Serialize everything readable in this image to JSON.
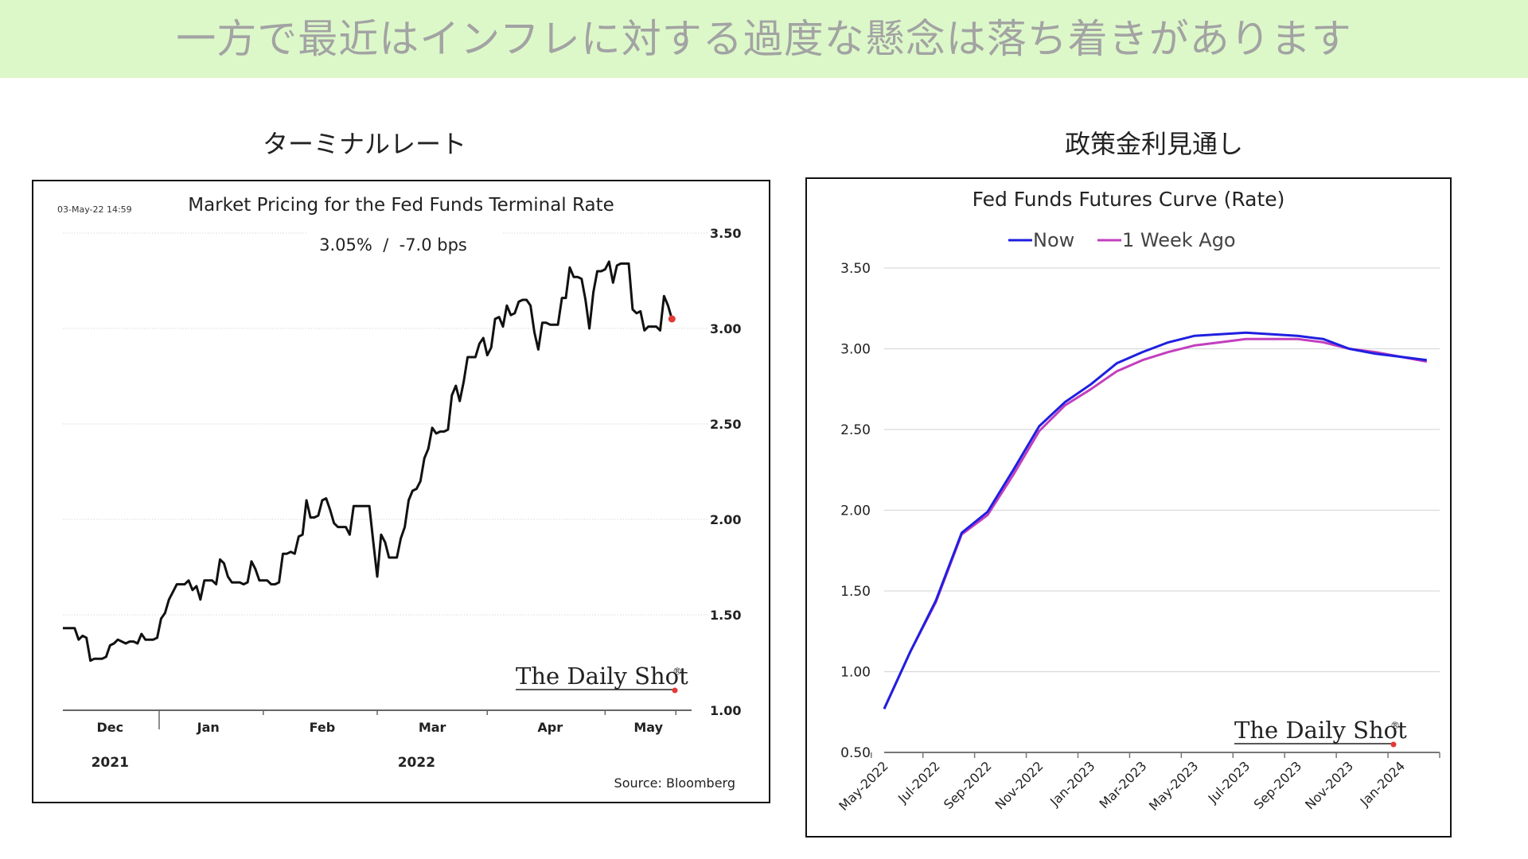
{
  "page": {
    "title": "一方で最近はインフレに対する過度な懸念は落ち着きがあります",
    "left_label": "ターミナルレート",
    "right_label": "政策金利見通し"
  },
  "colors": {
    "banner_bg": "#dcf8c9",
    "banner_text": "#a3a3a3",
    "line_black": "#111111",
    "last_point": "#e53935",
    "now": "#1f1fe0",
    "week_ago": "#c23fbf",
    "grid": "#d9d9d9"
  },
  "chart_data": [
    {
      "type": "line",
      "title": "Market Pricing for the Fed Funds Terminal Rate",
      "timestamp": "03-May-22 14:59",
      "subtitle": "3.05%  /  -7.0 bps",
      "source": "Source: Bloomberg",
      "watermark": "The Daily Shot",
      "watermark_mark": "®",
      "month_labels": [
        "Dec",
        "Jan",
        "Feb",
        "Mar",
        "Apr",
        "May"
      ],
      "year_labels": [
        "2021",
        "2022"
      ],
      "y_ticks": [
        "1.00",
        "1.50",
        "2.00",
        "2.50",
        "3.00",
        "3.50"
      ],
      "ylim": [
        1.0,
        3.5
      ],
      "grid": true,
      "x_range": [
        0,
        160
      ],
      "series": [
        {
          "values": [
            [
              0,
              1.43
            ],
            [
              2,
              1.43
            ],
            [
              3,
              1.43
            ],
            [
              4,
              1.37
            ],
            [
              5,
              1.39
            ],
            [
              6,
              1.38
            ],
            [
              7,
              1.26
            ],
            [
              8,
              1.27
            ],
            [
              9,
              1.27
            ],
            [
              10,
              1.27
            ],
            [
              11,
              1.28
            ],
            [
              12,
              1.34
            ],
            [
              13,
              1.35
            ],
            [
              14,
              1.37
            ],
            [
              15,
              1.36
            ],
            [
              16,
              1.35
            ],
            [
              17,
              1.36
            ],
            [
              18,
              1.36
            ],
            [
              19,
              1.35
            ],
            [
              20,
              1.4
            ],
            [
              21,
              1.37
            ],
            [
              22,
              1.37
            ],
            [
              23,
              1.37
            ],
            [
              24,
              1.38
            ],
            [
              25,
              1.48
            ],
            [
              26,
              1.51
            ],
            [
              27,
              1.58
            ],
            [
              28,
              1.62
            ],
            [
              29,
              1.66
            ],
            [
              30,
              1.66
            ],
            [
              31,
              1.66
            ],
            [
              32,
              1.68
            ],
            [
              33,
              1.63
            ],
            [
              34,
              1.65
            ],
            [
              35,
              1.58
            ],
            [
              36,
              1.68
            ],
            [
              37,
              1.68
            ],
            [
              38,
              1.68
            ],
            [
              39,
              1.66
            ],
            [
              40,
              1.79
            ],
            [
              41,
              1.77
            ],
            [
              42,
              1.7
            ],
            [
              43,
              1.67
            ],
            [
              44,
              1.67
            ],
            [
              45,
              1.67
            ],
            [
              46,
              1.66
            ],
            [
              47,
              1.67
            ],
            [
              48,
              1.78
            ],
            [
              49,
              1.74
            ],
            [
              50,
              1.68
            ],
            [
              51,
              1.68
            ],
            [
              52,
              1.68
            ],
            [
              53,
              1.66
            ],
            [
              54,
              1.66
            ],
            [
              55,
              1.67
            ],
            [
              56,
              1.82
            ],
            [
              57,
              1.82
            ],
            [
              58,
              1.83
            ],
            [
              59,
              1.82
            ],
            [
              60,
              1.91
            ],
            [
              61,
              1.92
            ],
            [
              62,
              2.1
            ],
            [
              63,
              2.01
            ],
            [
              64,
              2.01
            ],
            [
              65,
              2.02
            ],
            [
              66,
              2.1
            ],
            [
              67,
              2.11
            ],
            [
              68,
              2.05
            ],
            [
              69,
              1.98
            ],
            [
              70,
              1.96
            ],
            [
              71,
              1.96
            ],
            [
              72,
              1.96
            ],
            [
              73,
              1.92
            ],
            [
              74,
              2.07
            ],
            [
              75,
              2.07
            ],
            [
              76,
              2.07
            ],
            [
              77,
              2.07
            ],
            [
              78,
              2.07
            ],
            [
              79,
              1.88
            ],
            [
              80,
              1.7
            ],
            [
              81,
              1.92
            ],
            [
              82,
              1.88
            ],
            [
              83,
              1.8
            ],
            [
              84,
              1.8
            ],
            [
              85,
              1.8
            ],
            [
              86,
              1.9
            ],
            [
              87,
              1.96
            ],
            [
              88,
              2.1
            ],
            [
              89,
              2.15
            ],
            [
              90,
              2.16
            ],
            [
              91,
              2.2
            ],
            [
              92,
              2.32
            ],
            [
              93,
              2.37
            ],
            [
              94,
              2.48
            ],
            [
              95,
              2.45
            ],
            [
              96,
              2.46
            ],
            [
              97,
              2.46
            ],
            [
              98,
              2.47
            ],
            [
              99,
              2.65
            ],
            [
              100,
              2.7
            ],
            [
              101,
              2.62
            ],
            [
              102,
              2.72
            ],
            [
              103,
              2.85
            ],
            [
              104,
              2.85
            ],
            [
              105,
              2.85
            ],
            [
              106,
              2.92
            ],
            [
              107,
              2.95
            ],
            [
              108,
              2.86
            ],
            [
              109,
              2.9
            ],
            [
              110,
              3.05
            ],
            [
              111,
              3.06
            ],
            [
              112,
              3.01
            ],
            [
              113,
              3.12
            ],
            [
              114,
              3.07
            ],
            [
              115,
              3.08
            ],
            [
              116,
              3.14
            ],
            [
              117,
              3.15
            ],
            [
              118,
              3.15
            ],
            [
              119,
              3.12
            ],
            [
              120,
              2.98
            ],
            [
              121,
              2.89
            ],
            [
              122,
              3.03
            ],
            [
              123,
              3.03
            ],
            [
              124,
              3.02
            ],
            [
              125,
              3.02
            ],
            [
              126,
              3.02
            ],
            [
              127,
              3.16
            ],
            [
              128,
              3.16
            ],
            [
              129,
              3.32
            ],
            [
              130,
              3.27
            ],
            [
              131,
              3.27
            ],
            [
              132,
              3.26
            ],
            [
              133,
              3.15
            ],
            [
              134,
              3.0
            ],
            [
              135,
              3.19
            ],
            [
              136,
              3.3
            ],
            [
              137,
              3.3
            ],
            [
              138,
              3.31
            ],
            [
              139,
              3.35
            ],
            [
              140,
              3.24
            ],
            [
              141,
              3.33
            ],
            [
              142,
              3.34
            ],
            [
              143,
              3.34
            ],
            [
              144,
              3.34
            ],
            [
              145,
              3.1
            ],
            [
              146,
              3.08
            ],
            [
              147,
              3.09
            ],
            [
              148,
              2.99
            ],
            [
              149,
              3.01
            ],
            [
              150,
              3.01
            ],
            [
              151,
              3.01
            ],
            [
              152,
              2.99
            ],
            [
              153,
              3.17
            ],
            [
              154,
              3.12
            ],
            [
              155,
              3.05
            ]
          ]
        }
      ]
    },
    {
      "type": "line",
      "title": "Fed Funds Futures Curve (Rate)",
      "watermark": "The Daily Shot",
      "watermark_mark": "®",
      "legend_position": "top-center",
      "x_tick_labels": [
        "May-2022",
        "Jul-2022",
        "Sep-2022",
        "Nov-2022",
        "Jan-2023",
        "Mar-2023",
        "May-2023",
        "Jul-2023",
        "Sep-2023",
        "Nov-2023",
        "Jan-2024"
      ],
      "y_ticks": [
        "0.50",
        "1.00",
        "1.50",
        "2.00",
        "2.50",
        "3.00",
        "3.50"
      ],
      "ylim": [
        0.5,
        3.5
      ],
      "grid": true,
      "x_range": [
        0,
        21.5
      ],
      "series": [
        {
          "name": "Now",
          "color": "#1f1fe0",
          "values": [
            [
              0,
              0.77
            ],
            [
              1,
              1.12
            ],
            [
              2,
              1.44
            ],
            [
              3,
              1.86
            ],
            [
              4,
              1.99
            ],
            [
              5,
              2.25
            ],
            [
              6,
              2.52
            ],
            [
              7,
              2.67
            ],
            [
              8,
              2.78
            ],
            [
              9,
              2.91
            ],
            [
              10,
              2.98
            ],
            [
              11,
              3.04
            ],
            [
              12,
              3.08
            ],
            [
              13,
              3.09
            ],
            [
              14,
              3.1
            ],
            [
              15,
              3.09
            ],
            [
              16,
              3.08
            ],
            [
              17,
              3.06
            ],
            [
              18,
              3.0
            ],
            [
              19,
              2.97
            ],
            [
              20,
              2.95
            ],
            [
              21,
              2.93
            ]
          ]
        },
        {
          "name": "1 Week Ago",
          "color": "#c23fbf",
          "values": [
            [
              0,
              0.77
            ],
            [
              1,
              1.12
            ],
            [
              2,
              1.43
            ],
            [
              3,
              1.85
            ],
            [
              4,
              1.97
            ],
            [
              5,
              2.22
            ],
            [
              6,
              2.49
            ],
            [
              7,
              2.65
            ],
            [
              8,
              2.75
            ],
            [
              9,
              2.86
            ],
            [
              10,
              2.93
            ],
            [
              11,
              2.98
            ],
            [
              12,
              3.02
            ],
            [
              13,
              3.04
            ],
            [
              14,
              3.06
            ],
            [
              15,
              3.06
            ],
            [
              16,
              3.06
            ],
            [
              17,
              3.04
            ],
            [
              18,
              3.0
            ],
            [
              19,
              2.98
            ],
            [
              20,
              2.95
            ],
            [
              21,
              2.92
            ]
          ]
        }
      ]
    }
  ]
}
